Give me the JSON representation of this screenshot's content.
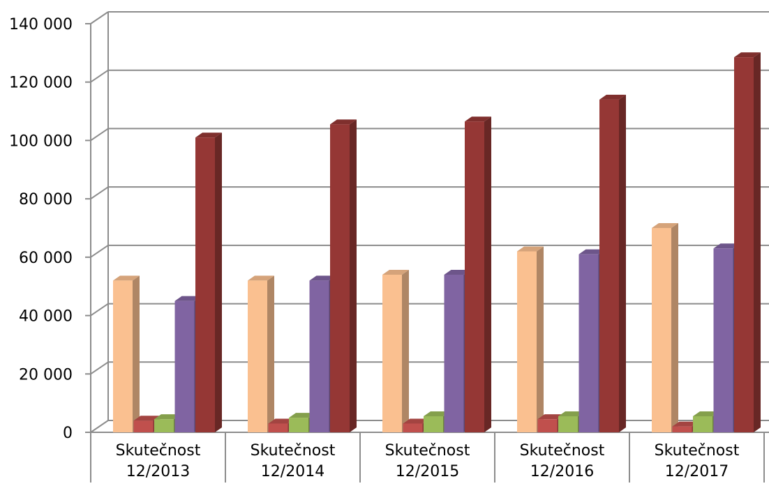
{
  "chart_data": {
    "type": "bar",
    "title": "",
    "xlabel": "",
    "ylabel": "",
    "ylim": [
      0,
      140000
    ],
    "y_ticks": [
      0,
      20000,
      40000,
      60000,
      80000,
      100000,
      120000,
      140000
    ],
    "y_tick_labels": [
      "0",
      "20 000",
      "40 000",
      "60 000",
      "80 000",
      "100 000",
      "120 000",
      "140 000"
    ],
    "grid": true,
    "legend": "none",
    "style": "3d-clustered-columns",
    "categories": [
      [
        "Skutečnost",
        "12/2013"
      ],
      [
        "Skutečnost",
        "12/2014"
      ],
      [
        "Skutečnost",
        "12/2015"
      ],
      [
        "Skutečnost",
        "12/2016"
      ],
      [
        "Skutečnost",
        "12/2017"
      ]
    ],
    "series": [
      {
        "color": "#FAC090",
        "values": [
          52000,
          52000,
          54000,
          62000,
          70000
        ]
      },
      {
        "color": "#C0504D",
        "values": [
          4000,
          3000,
          3000,
          4500,
          2000
        ]
      },
      {
        "color": "#9BBB59",
        "values": [
          4500,
          5000,
          5500,
          5500,
          5500
        ]
      },
      {
        "color": "#8064A2",
        "values": [
          45000,
          52000,
          54000,
          61000,
          63000
        ]
      },
      {
        "color": "#953735",
        "values": [
          101000,
          105500,
          106500,
          114000,
          128500
        ]
      }
    ]
  }
}
